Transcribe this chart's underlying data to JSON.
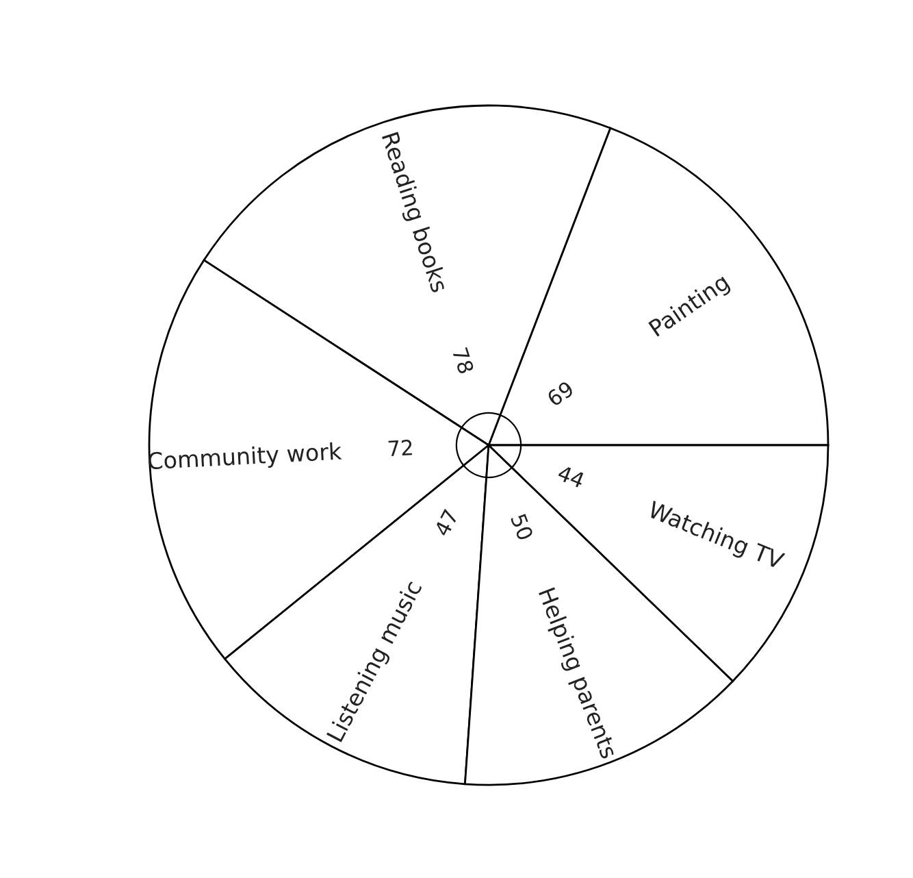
{
  "chart_data": {
    "type": "pie",
    "categories": [
      "Painting",
      "Reading books",
      "Community work",
      "Listening music",
      "Helping parents",
      "Watching TV"
    ],
    "values": [
      69,
      78,
      72,
      47,
      50,
      44
    ],
    "colors": [
      "#ffffff",
      "#ffffff",
      "#ffffff",
      "#ffffff",
      "#ffffff",
      "#ffffff"
    ],
    "data_labels": true
  }
}
